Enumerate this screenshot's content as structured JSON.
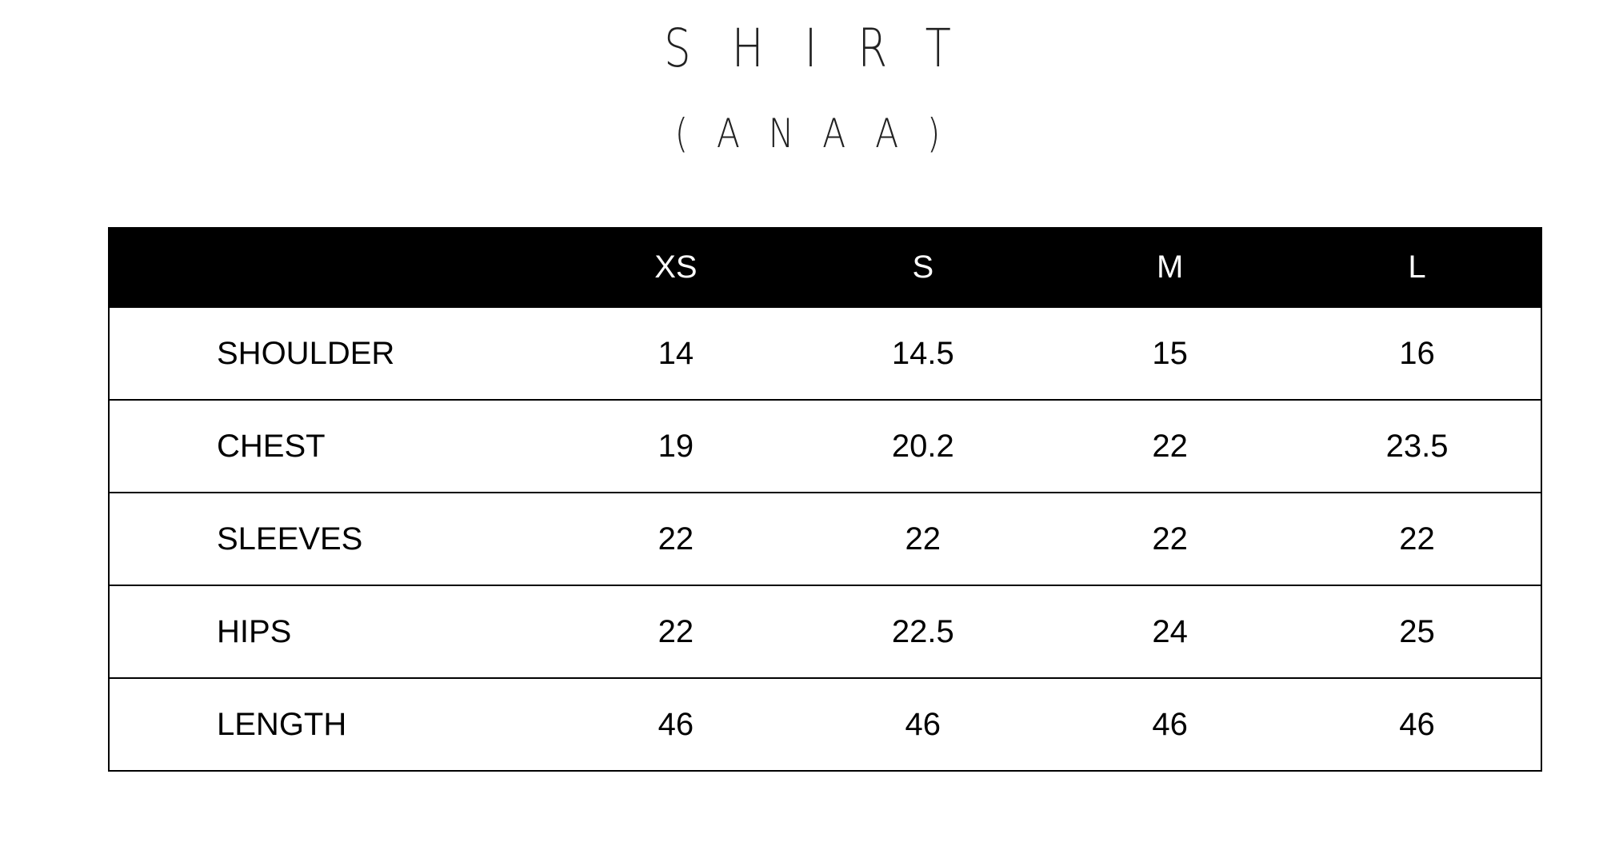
{
  "title": "SHIRT",
  "subtitle": "(ANAA)",
  "table": {
    "headers": [
      "",
      "XS",
      "S",
      "M",
      "L"
    ],
    "rows": [
      {
        "label": "SHOULDER",
        "values": [
          "14",
          "14.5",
          "15",
          "16"
        ]
      },
      {
        "label": "CHEST",
        "values": [
          "19",
          "20.2",
          "22",
          "23.5"
        ]
      },
      {
        "label": "SLEEVES",
        "values": [
          "22",
          "22",
          "22",
          "22"
        ]
      },
      {
        "label": "HIPS",
        "values": [
          "22",
          "22.5",
          "24",
          "25"
        ]
      },
      {
        "label": "LENGTH",
        "values": [
          "46",
          "46",
          "46",
          "46"
        ]
      }
    ]
  }
}
